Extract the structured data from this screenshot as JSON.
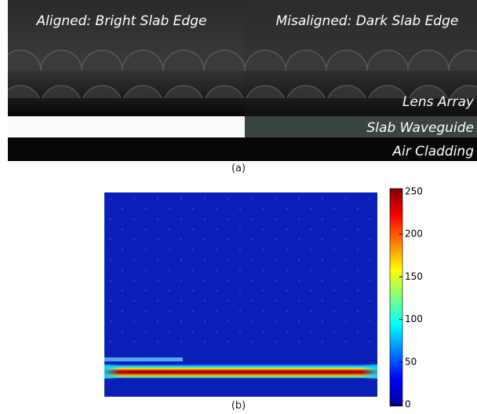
{
  "panel_a": {
    "left_label": "Aligned: Bright Slab Edge",
    "right_label": "Misaligned: Dark Slab Edge",
    "layers": [
      "Lens Array",
      "Slab Waveguide",
      "Air Cladding"
    ],
    "caption": "(a)"
  },
  "panel_b": {
    "colorbar": {
      "lim": [
        0,
        250
      ],
      "ticks": [
        0,
        50,
        100,
        150,
        200,
        250
      ]
    },
    "caption": "(b)"
  }
}
